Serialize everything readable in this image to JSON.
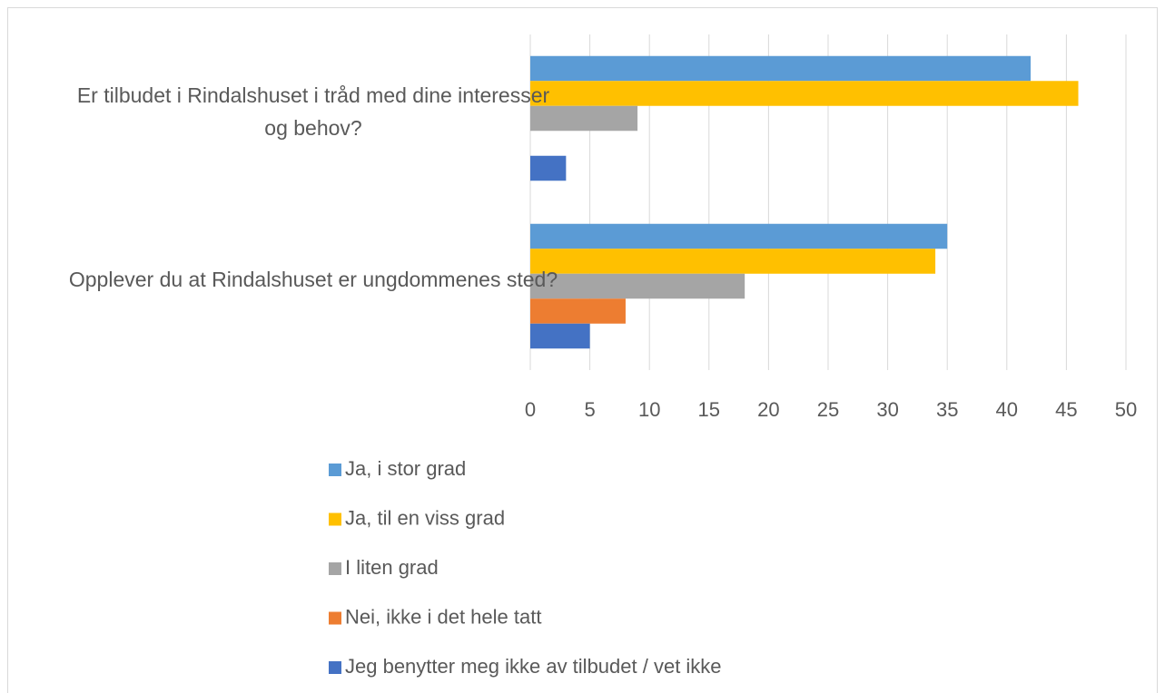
{
  "chart_data": {
    "type": "bar",
    "orientation": "horizontal",
    "categories": [
      "Er tilbudet i Rindalshuset i tråd med dine interesser og behov?",
      "Opplever du at Rindalshuset er ungdommenes sted?"
    ],
    "series": [
      {
        "name": "Ja, i stor grad",
        "color": "#5b9bd5",
        "values": [
          42,
          35
        ]
      },
      {
        "name": "Ja, til en viss grad",
        "color": "#ffc000",
        "values": [
          46,
          34
        ]
      },
      {
        "name": "I liten grad",
        "color": "#a5a5a5",
        "values": [
          9,
          18
        ]
      },
      {
        "name": "Nei, ikke i det hele tatt",
        "color": "#ed7d31",
        "values": [
          0,
          8
        ]
      },
      {
        "name": "Jeg benytter meg ikke av tilbudet / vet ikke",
        "color": "#4472c4",
        "values": [
          3,
          5
        ]
      }
    ],
    "xlim": [
      0,
      50
    ],
    "xticks": [
      0,
      5,
      10,
      15,
      20,
      25,
      30,
      35,
      40,
      45,
      50
    ],
    "grid": true,
    "legend": "bottom"
  }
}
